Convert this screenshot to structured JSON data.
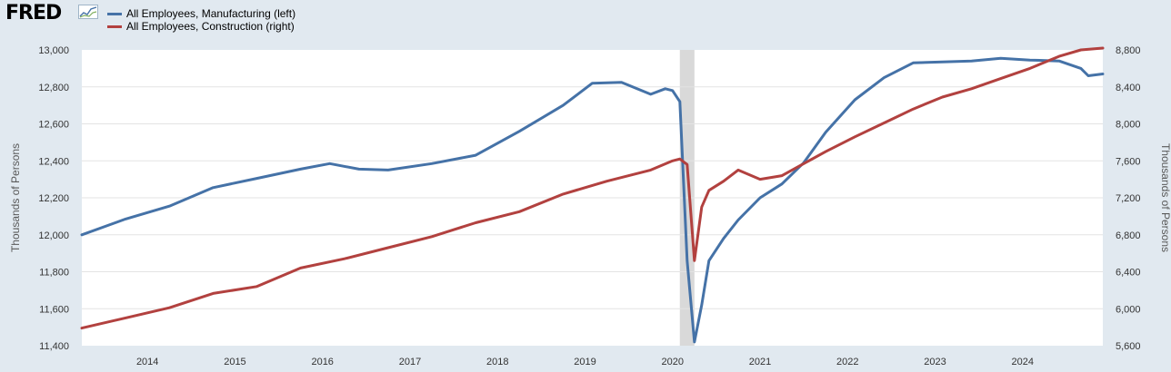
{
  "header": {
    "logo_text": "FRED",
    "logo_icon": "chart-line-icon"
  },
  "colors": {
    "manufacturing": "#4572a7",
    "construction": "#b2413f",
    "recession": "#d9d9d9",
    "plot_bg": "#ffffff",
    "page_bg": "#e1e9f0",
    "grid": "#e3e3e3"
  },
  "chart_data": {
    "type": "line",
    "ylabel_left": "Thousands of Persons",
    "ylabel_right": "Thousands of Persons",
    "ylim_left": [
      11400,
      13000
    ],
    "ylim_right": [
      5600,
      8800
    ],
    "yticks_left": [
      "11,400",
      "11,600",
      "11,800",
      "12,000",
      "12,200",
      "12,400",
      "12,600",
      "12,800",
      "13,000"
    ],
    "yticks_right": [
      "5,600",
      "6,000",
      "6,400",
      "6,800",
      "7,200",
      "7,600",
      "8,000",
      "8,400",
      "8,800"
    ],
    "xticks": [
      "2014",
      "2015",
      "2016",
      "2017",
      "2018",
      "2019",
      "2020",
      "2021",
      "2022",
      "2023",
      "2024"
    ],
    "x_start": "2013-04",
    "x_end": "2024-12",
    "grid": true,
    "recessions": [
      {
        "start": "2020-02",
        "end": "2020-04"
      }
    ],
    "series": [
      {
        "name": "All Employees, Manufacturing (left)",
        "axis": "left",
        "x": [
          "2013-04",
          "2013-10",
          "2014-04",
          "2014-10",
          "2015-04",
          "2015-10",
          "2016-02",
          "2016-06",
          "2016-10",
          "2017-04",
          "2017-10",
          "2018-04",
          "2018-10",
          "2019-02",
          "2019-06",
          "2019-10",
          "2019-12",
          "2020-01",
          "2020-02",
          "2020-03",
          "2020-04",
          "2020-05",
          "2020-06",
          "2020-08",
          "2020-10",
          "2021-01",
          "2021-04",
          "2021-07",
          "2021-10",
          "2022-02",
          "2022-06",
          "2022-10",
          "2023-02",
          "2023-06",
          "2023-10",
          "2024-02",
          "2024-06",
          "2024-09",
          "2024-10",
          "2024-12"
        ],
        "values": [
          12000,
          12085,
          12155,
          12255,
          12305,
          12355,
          12385,
          12355,
          12350,
          12385,
          12430,
          12560,
          12700,
          12820,
          12825,
          12760,
          12790,
          12780,
          12720,
          11860,
          11420,
          11620,
          11860,
          11980,
          12080,
          12200,
          12275,
          12390,
          12555,
          12730,
          12850,
          12930,
          12935,
          12940,
          12955,
          12945,
          12940,
          12900,
          12860,
          12870
        ]
      },
      {
        "name": "All Employees, Construction (right)",
        "axis": "right",
        "x": [
          "2013-04",
          "2013-10",
          "2014-04",
          "2014-10",
          "2015-04",
          "2015-10",
          "2016-04",
          "2016-10",
          "2017-04",
          "2017-10",
          "2018-04",
          "2018-10",
          "2019-04",
          "2019-10",
          "2020-01",
          "2020-02",
          "2020-03",
          "2020-04",
          "2020-05",
          "2020-06",
          "2020-08",
          "2020-10",
          "2021-01",
          "2021-04",
          "2021-07",
          "2021-10",
          "2022-02",
          "2022-06",
          "2022-10",
          "2023-02",
          "2023-06",
          "2023-10",
          "2024-02",
          "2024-06",
          "2024-09",
          "2024-12"
        ],
        "values": [
          5790,
          5900,
          6010,
          6165,
          6240,
          6440,
          6540,
          6660,
          6780,
          6930,
          7050,
          7240,
          7380,
          7500,
          7600,
          7620,
          7560,
          6520,
          7100,
          7280,
          7380,
          7500,
          7400,
          7440,
          7570,
          7700,
          7860,
          8010,
          8160,
          8290,
          8380,
          8490,
          8600,
          8730,
          8800,
          8820
        ]
      }
    ]
  }
}
